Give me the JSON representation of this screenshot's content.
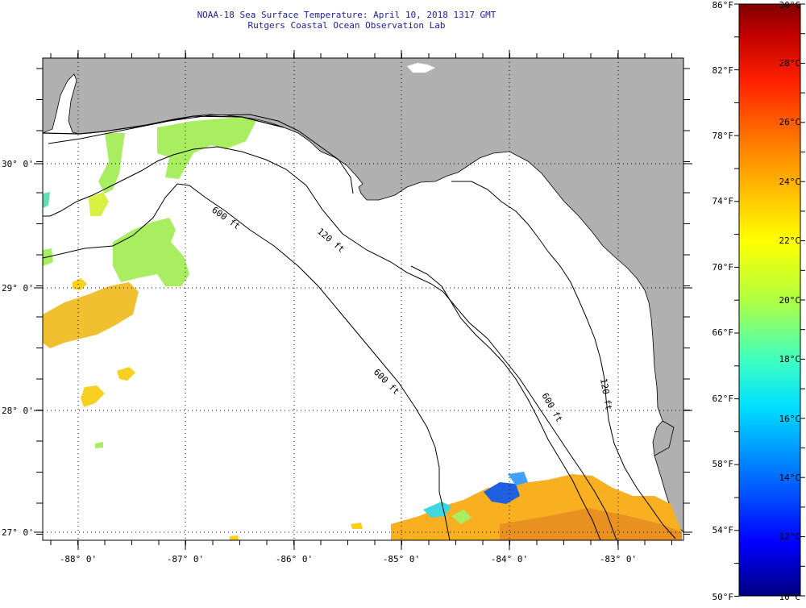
{
  "header": {
    "title": "NOAA-18 Sea Surface Temperature:  April 10, 2018 1317 GMT",
    "subtitle": "Rutgers Coastal Ocean Observation Lab"
  },
  "map": {
    "lon_labels": [
      "-88° 0'",
      "-87° 0'",
      "-86° 0'",
      "-85° 0'",
      "-84° 0'",
      "-83° 0'"
    ],
    "lat_labels": [
      "30° 0'",
      "29° 0'",
      "28° 0'",
      "27° 0'"
    ],
    "isobath_labels": [
      "600 ft",
      "120 ft",
      "600 ft",
      "600 ft",
      "120 ft"
    ],
    "colors": {
      "land": "#b0b0b0",
      "ocean": "#ffffff",
      "grid": "#000000"
    }
  },
  "colorbar": {
    "fahrenheit_labels": [
      "86°F",
      "82°F",
      "78°F",
      "74°F",
      "70°F",
      "66°F",
      "62°F",
      "58°F",
      "54°F",
      "50°F"
    ],
    "celsius_labels": [
      "30°C",
      "28°C",
      "26°C",
      "24°C",
      "22°C",
      "20°C",
      "18°C",
      "16°C",
      "14°C",
      "12°C",
      "10°C"
    ],
    "colors": [
      "#000080",
      "#0000ff",
      "#0080ff",
      "#00e0ff",
      "#40ffc0",
      "#b0ff40",
      "#ffff00",
      "#ffc000",
      "#ff8000",
      "#ff2000",
      "#c00000",
      "#800000"
    ]
  }
}
